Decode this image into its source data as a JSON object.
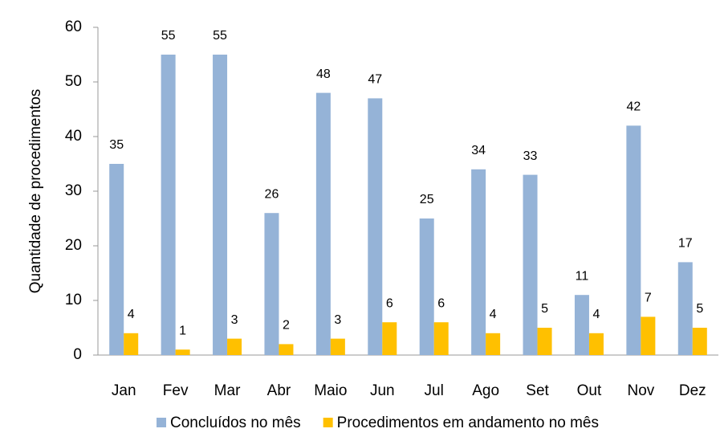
{
  "chart_data": {
    "type": "bar",
    "y_label": "Quantidade de procedimentos",
    "categories": [
      "Jan",
      "Fev",
      "Mar",
      "Abr",
      "Maio",
      "Jun",
      "Jul",
      "Ago",
      "Set",
      "Out",
      "Nov",
      "Dez"
    ],
    "series": [
      {
        "name": "Concluídos no mês",
        "color": "#95b3d7",
        "values": [
          35,
          55,
          55,
          26,
          48,
          47,
          25,
          34,
          33,
          11,
          42,
          17
        ]
      },
      {
        "name": "Procedimentos em andamento no mês",
        "color": "#ffc000",
        "values": [
          4,
          1,
          3,
          2,
          3,
          6,
          6,
          4,
          5,
          4,
          7,
          5
        ]
      }
    ],
    "ylim": [
      0,
      60
    ],
    "yticks": [
      0,
      10,
      20,
      30,
      40,
      50,
      60
    ],
    "grid": false,
    "legend": "bottom"
  }
}
